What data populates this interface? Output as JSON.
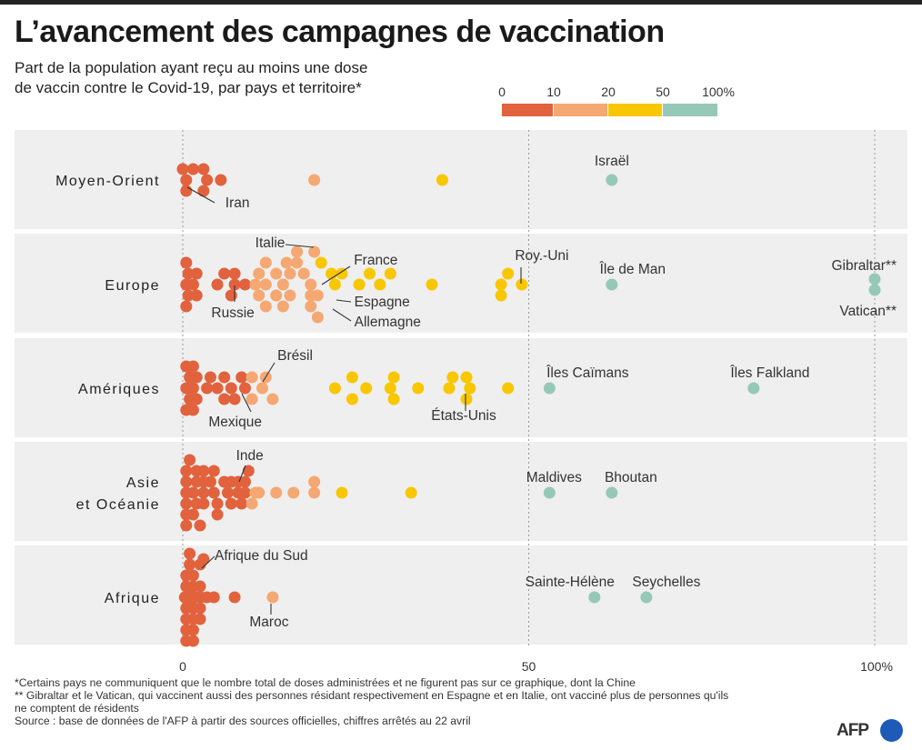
{
  "title": "L’avancement des campagnes de vaccination",
  "subtitle_line1": "Part de la population ayant reçu au moins une dose",
  "subtitle_line2": "de vaccin contre le Covid-19, par pays et territoire*",
  "footnotes": [
    "*Certains pays ne communiquent que le nombre total de doses administrées et ne figurent pas sur ce graphique, dont la Chine",
    "** Gibraltar et le Vatican, qui vaccinent aussi des personnes résidant respectivement en Espagne et en Italie, ont vacciné plus de personnes qu'ils",
    "ne comptent de résidents",
    "Source : base de données de l'AFP à partir des sources officielles, chiffres arrêtés au 22 avril"
  ],
  "logo_text": "AFP",
  "colors": {
    "band_background": "#efefef",
    "c0_10": "#e1623d",
    "c10_20": "#f5a872",
    "c20_50": "#f8c700",
    "c50_100": "#96c8b8",
    "leader": "#333333"
  },
  "chart_data": {
    "type": "scatter",
    "title": "L’avancement des campagnes de vaccination",
    "xlabel": "Part de la population ayant reçu au moins une dose (%)",
    "xlim": [
      0,
      100
    ],
    "x_ticks": [
      {
        "value": 0,
        "label": "0"
      },
      {
        "value": 50,
        "label": "50"
      },
      {
        "value": 100,
        "label": "100%"
      }
    ],
    "legend": {
      "position": "top-right",
      "thresholds": [
        "0",
        "10",
        "20",
        "50",
        "100%"
      ],
      "bins": [
        {
          "range": "0-10",
          "color": "#e1623d"
        },
        {
          "range": "10-20",
          "color": "#f5a872"
        },
        {
          "range": "20-50",
          "color": "#f8c700"
        },
        {
          "range": "50-100",
          "color": "#96c8b8"
        }
      ]
    },
    "regions": [
      {
        "key": "me",
        "name": "Moyen-Orient",
        "lines": [
          "Moyen-Orient"
        ],
        "points": [
          [
            0,
            -1
          ],
          [
            0.5,
            0
          ],
          [
            1.5,
            -1
          ],
          [
            0.5,
            1
          ],
          [
            3,
            -1
          ],
          [
            3.5,
            0
          ],
          [
            3,
            1
          ],
          [
            5.5,
            0
          ],
          [
            19,
            0
          ],
          [
            37.5,
            0
          ],
          [
            62,
            0
          ]
        ],
        "labels": [
          {
            "text": "Iran",
            "value": 0.5
          },
          {
            "text": "Israël",
            "value": 62
          }
        ]
      },
      {
        "key": "eu",
        "name": "Europe",
        "lines": [
          "Europe"
        ],
        "points": [
          [
            0.5,
            -2
          ],
          [
            0.8,
            -1
          ],
          [
            0.5,
            0
          ],
          [
            0.8,
            1
          ],
          [
            0.5,
            2
          ],
          [
            1.5,
            0
          ],
          [
            2,
            -1
          ],
          [
            2,
            1
          ],
          [
            5,
            0
          ],
          [
            6,
            -1
          ],
          [
            7.5,
            -1
          ],
          [
            7.5,
            0
          ],
          [
            7,
            1
          ],
          [
            9,
            0
          ],
          [
            10.5,
            0
          ],
          [
            11,
            -1
          ],
          [
            11,
            1
          ],
          [
            12,
            -2
          ],
          [
            12,
            0
          ],
          [
            12,
            2
          ],
          [
            13.5,
            -1
          ],
          [
            13.5,
            1
          ],
          [
            14.5,
            0
          ],
          [
            14.5,
            2
          ],
          [
            15,
            -2
          ],
          [
            15.5,
            -1
          ],
          [
            15.5,
            1
          ],
          [
            16.5,
            -3
          ],
          [
            16.5,
            -2
          ],
          [
            17.5,
            -1
          ],
          [
            18.5,
            0
          ],
          [
            18.5,
            1
          ],
          [
            19.5,
            1
          ],
          [
            18.5,
            2
          ],
          [
            19.5,
            3
          ],
          [
            19,
            -3
          ],
          [
            20,
            -2
          ],
          [
            21.5,
            -1
          ],
          [
            22,
            0
          ],
          [
            23,
            -1
          ],
          [
            25.5,
            0
          ],
          [
            27,
            -1
          ],
          [
            28.5,
            0
          ],
          [
            30,
            -1
          ],
          [
            36,
            0
          ],
          [
            46,
            0
          ],
          [
            47,
            -1
          ],
          [
            46,
            1
          ],
          [
            49,
            0
          ],
          [
            62,
            0
          ],
          [
            100,
            -0.5
          ],
          [
            100,
            0.5
          ]
        ],
        "labels": [
          {
            "text": "Italie",
            "value": 19.5
          },
          {
            "text": "France",
            "value": 20
          },
          {
            "text": "Roy.-Uni",
            "value": 49
          },
          {
            "text": "Île de Man",
            "value": 62
          },
          {
            "text": "Gibraltar**",
            "value": 100
          },
          {
            "text": "Russie",
            "value": 7.5
          },
          {
            "text": "Espagne",
            "value": 21.5
          },
          {
            "text": "Allemagne",
            "value": 21.5
          },
          {
            "text": "Vatican**",
            "value": 100
          }
        ]
      },
      {
        "key": "am",
        "name": "Amériques",
        "lines": [
          "Amériques"
        ],
        "points": [
          [
            0.5,
            -2
          ],
          [
            1,
            -1
          ],
          [
            0.5,
            0
          ],
          [
            1,
            1
          ],
          [
            0.5,
            2
          ],
          [
            1.5,
            -2
          ],
          [
            1.5,
            0
          ],
          [
            1.5,
            2
          ],
          [
            2,
            -1
          ],
          [
            2,
            1
          ],
          [
            3.5,
            0
          ],
          [
            4,
            -1
          ],
          [
            5,
            0
          ],
          [
            6,
            -1
          ],
          [
            6,
            1
          ],
          [
            7,
            0
          ],
          [
            7.5,
            1
          ],
          [
            8.5,
            -1
          ],
          [
            9,
            0
          ],
          [
            10,
            -1
          ],
          [
            10,
            1
          ],
          [
            11.5,
            0
          ],
          [
            12,
            -1
          ],
          [
            13,
            1
          ],
          [
            22,
            0
          ],
          [
            24.5,
            -1
          ],
          [
            24.5,
            1
          ],
          [
            26.5,
            0
          ],
          [
            30.5,
            -1
          ],
          [
            30,
            0
          ],
          [
            30.5,
            1
          ],
          [
            34,
            0
          ],
          [
            38.5,
            0
          ],
          [
            39,
            -1
          ],
          [
            41,
            -1
          ],
          [
            41,
            1
          ],
          [
            41.5,
            0
          ],
          [
            47,
            0
          ],
          [
            53,
            0
          ],
          [
            82.5,
            0
          ]
        ],
        "labels": [
          {
            "text": "Brésil",
            "value": 11.5
          },
          {
            "text": "Îles Caïmans",
            "value": 53
          },
          {
            "text": "Îles Falkland",
            "value": 82.5
          },
          {
            "text": "Mexique",
            "value": 8.5
          },
          {
            "text": "États-Unis",
            "value": 41
          }
        ]
      },
      {
        "key": "as",
        "name": "Asie et Océanie",
        "lines": [
          "Asie",
          "et Océanie"
        ],
        "points": [
          [
            1,
            -3
          ],
          [
            0.5,
            -2
          ],
          [
            0.5,
            -1
          ],
          [
            0.5,
            0
          ],
          [
            0.5,
            1
          ],
          [
            0.5,
            2
          ],
          [
            0.5,
            3
          ],
          [
            2,
            -2
          ],
          [
            2,
            -1
          ],
          [
            1.5,
            0
          ],
          [
            2,
            1
          ],
          [
            1.5,
            2
          ],
          [
            2.5,
            3
          ],
          [
            3,
            -2
          ],
          [
            3,
            -1
          ],
          [
            3,
            0
          ],
          [
            3,
            1
          ],
          [
            4,
            -1
          ],
          [
            4.5,
            -2
          ],
          [
            4.5,
            0
          ],
          [
            5,
            1
          ],
          [
            5,
            2
          ],
          [
            6,
            -1
          ],
          [
            6.5,
            0
          ],
          [
            7,
            1
          ],
          [
            7,
            -1
          ],
          [
            8,
            -1
          ],
          [
            8,
            0
          ],
          [
            8.5,
            1
          ],
          [
            9,
            0
          ],
          [
            9,
            -1
          ],
          [
            9.5,
            -2
          ],
          [
            10,
            1
          ],
          [
            10.5,
            0
          ],
          [
            11,
            0
          ],
          [
            13.5,
            0
          ],
          [
            16,
            0
          ],
          [
            19,
            -1
          ],
          [
            19,
            0
          ],
          [
            23,
            0
          ],
          [
            33,
            0
          ],
          [
            53,
            0
          ],
          [
            62,
            0
          ]
        ],
        "labels": [
          {
            "text": "Inde",
            "value": 8.5
          },
          {
            "text": "Maldives",
            "value": 53
          },
          {
            "text": "Bhoutan",
            "value": 62
          }
        ]
      },
      {
        "key": "af",
        "name": "Afrique",
        "lines": [
          "Afrique"
        ],
        "points": [
          [
            2.5,
            -3
          ],
          [
            1,
            -3
          ],
          [
            0.5,
            -2
          ],
          [
            1.5,
            -2
          ],
          [
            0.5,
            -1
          ],
          [
            1.5,
            -1
          ],
          [
            2.5,
            -1
          ],
          [
            0.3,
            0
          ],
          [
            1,
            0
          ],
          [
            1.8,
            0
          ],
          [
            2.6,
            0
          ],
          [
            3.5,
            0
          ],
          [
            0.5,
            1
          ],
          [
            1.5,
            1
          ],
          [
            2.5,
            1
          ],
          [
            0.5,
            2
          ],
          [
            1.5,
            2
          ],
          [
            2.5,
            2
          ],
          [
            0.5,
            3
          ],
          [
            1.5,
            3
          ],
          [
            0.5,
            4
          ],
          [
            1.5,
            4
          ],
          [
            1,
            -4
          ],
          [
            3,
            -3.5
          ],
          [
            4.5,
            0
          ],
          [
            7.5,
            0
          ],
          [
            13,
            0
          ],
          [
            59.5,
            0
          ],
          [
            67,
            0
          ]
        ],
        "labels": [
          {
            "text": "Afrique du Sud",
            "value": 2.5
          },
          {
            "text": "Sainte-Hélène",
            "value": 59.5
          },
          {
            "text": "Seychelles",
            "value": 67
          },
          {
            "text": "Maroc",
            "value": 13
          }
        ]
      }
    ]
  }
}
